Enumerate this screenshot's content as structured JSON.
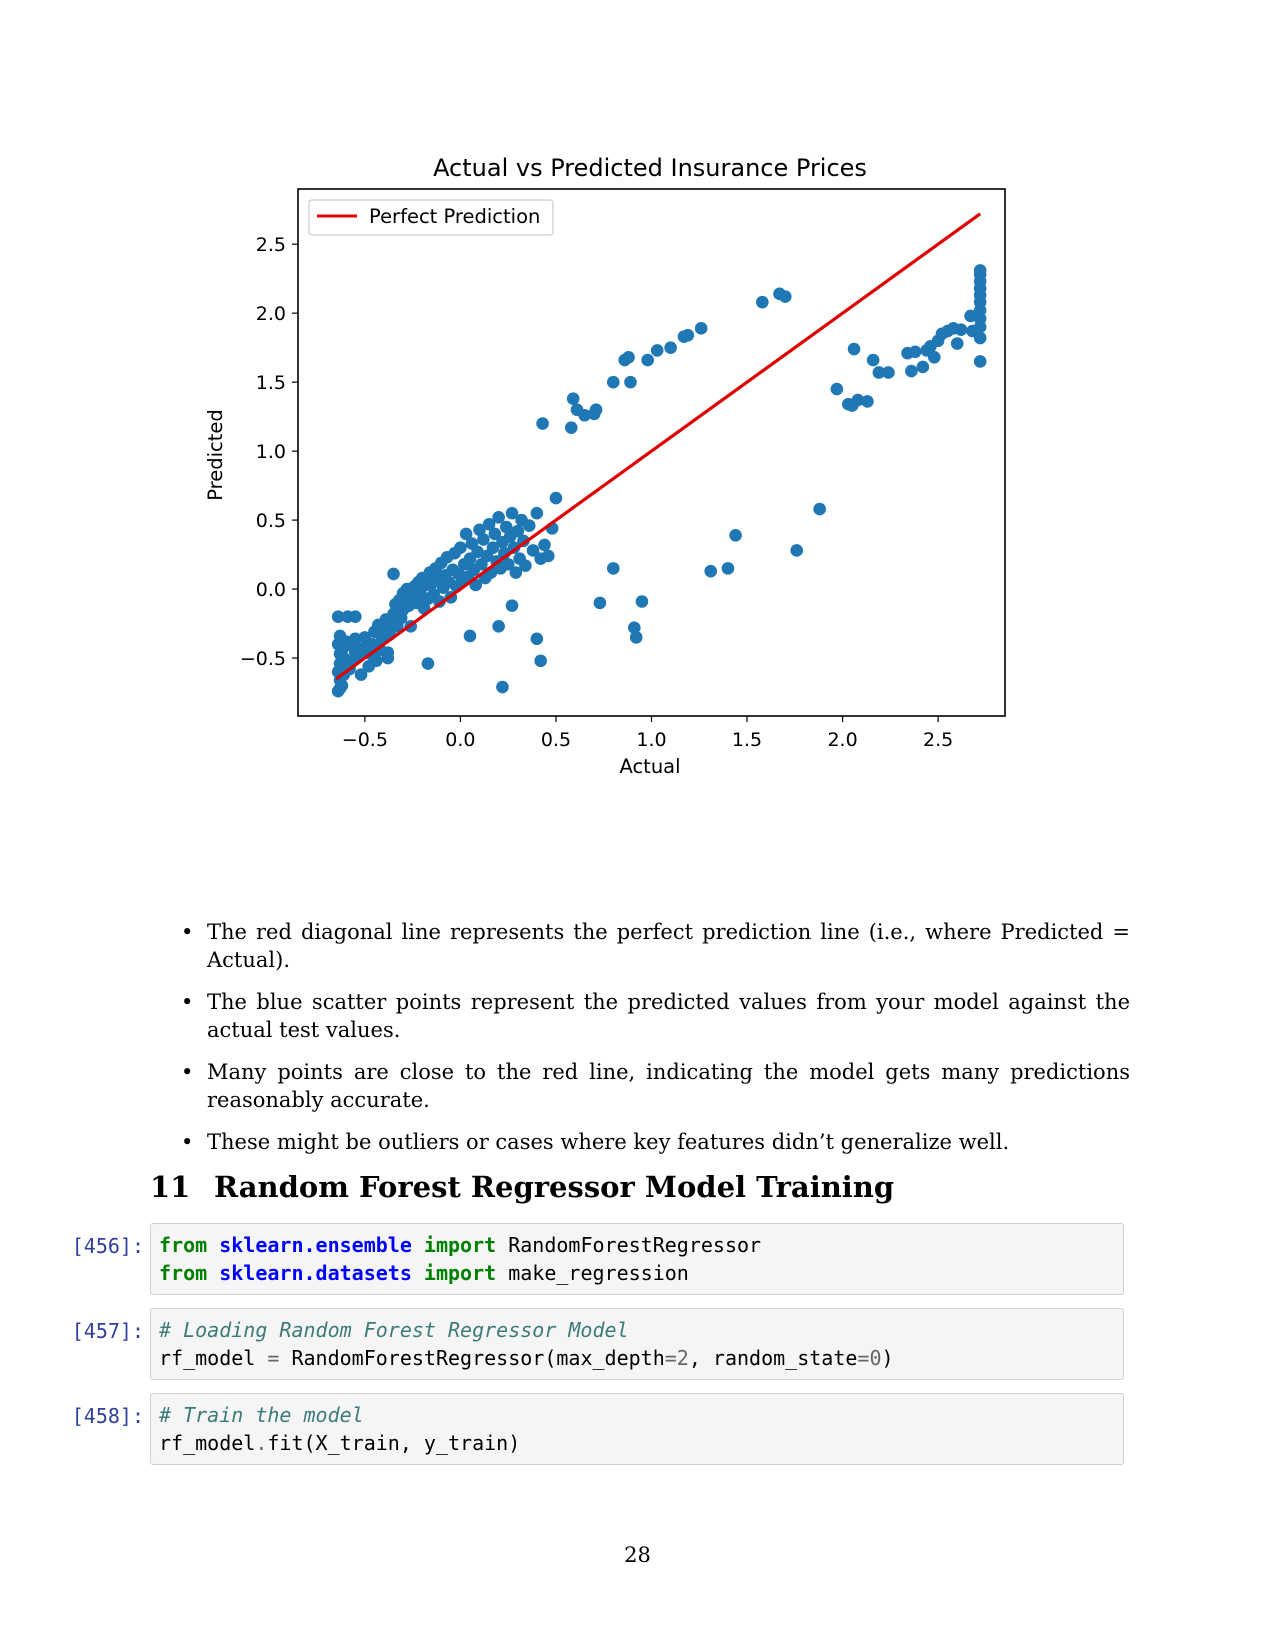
{
  "chart_data": {
    "type": "scatter",
    "title": "Actual vs Predicted Insurance Prices",
    "xlabel": "Actual",
    "ylabel": "Predicted",
    "xlim": [
      -0.85,
      2.85
    ],
    "ylim": [
      -0.92,
      2.9
    ],
    "xticks": [
      -0.5,
      0.0,
      0.5,
      1.0,
      1.5,
      2.0,
      2.5
    ],
    "xtick_labels": [
      "−0.5",
      "0.0",
      "0.5",
      "1.0",
      "1.5",
      "2.0",
      "2.5"
    ],
    "yticks": [
      -0.5,
      0.0,
      0.5,
      1.0,
      1.5,
      2.0,
      2.5
    ],
    "ytick_labels": [
      "−0.5",
      "0.0",
      "0.5",
      "1.0",
      "1.5",
      "2.0",
      "2.5"
    ],
    "legend": {
      "label": "Perfect Prediction",
      "placement": "upper-left"
    },
    "line": {
      "name": "Perfect Prediction",
      "color": "#e00000",
      "x": [
        -0.65,
        2.72
      ],
      "y": [
        -0.65,
        2.72
      ]
    },
    "scatter_color": "#1f77b4",
    "points": [
      [
        -0.64,
        -0.74
      ],
      [
        -0.63,
        -0.72
      ],
      [
        -0.62,
        -0.7
      ],
      [
        -0.63,
        -0.66
      ],
      [
        -0.61,
        -0.62
      ],
      [
        -0.64,
        -0.6
      ],
      [
        -0.62,
        -0.57
      ],
      [
        -0.63,
        -0.54
      ],
      [
        -0.61,
        -0.5
      ],
      [
        -0.63,
        -0.47
      ],
      [
        -0.62,
        -0.44
      ],
      [
        -0.64,
        -0.4
      ],
      [
        -0.6,
        -0.38
      ],
      [
        -0.63,
        -0.34
      ],
      [
        -0.64,
        -0.2
      ],
      [
        -0.58,
        -0.58
      ],
      [
        -0.56,
        -0.52
      ],
      [
        -0.55,
        -0.46
      ],
      [
        -0.57,
        -0.41
      ],
      [
        -0.55,
        -0.36
      ],
      [
        -0.53,
        -0.48
      ],
      [
        -0.52,
        -0.62
      ],
      [
        -0.51,
        -0.43
      ],
      [
        -0.5,
        -0.35
      ],
      [
        -0.48,
        -0.56
      ],
      [
        -0.47,
        -0.47
      ],
      [
        -0.46,
        -0.4
      ],
      [
        -0.45,
        -0.31
      ],
      [
        -0.44,
        -0.52
      ],
      [
        -0.43,
        -0.26
      ],
      [
        -0.42,
        -0.44
      ],
      [
        -0.41,
        -0.36
      ],
      [
        -0.4,
        -0.29
      ],
      [
        -0.39,
        -0.22
      ],
      [
        -0.38,
        -0.5
      ],
      [
        -0.37,
        -0.33
      ],
      [
        -0.36,
        -0.25
      ],
      [
        -0.35,
        -0.18
      ],
      [
        -0.34,
        -0.11
      ],
      [
        -0.33,
        -0.27
      ],
      [
        -0.32,
        -0.08
      ],
      [
        -0.31,
        -0.21
      ],
      [
        -0.3,
        -0.15
      ],
      [
        -0.29,
        -0.04
      ],
      [
        -0.28,
        0.0
      ],
      [
        -0.27,
        -0.12
      ],
      [
        -0.26,
        -0.27
      ],
      [
        -0.25,
        -0.05
      ],
      [
        -0.24,
        0.02
      ],
      [
        -0.23,
        -0.1
      ],
      [
        -0.22,
        0.05
      ],
      [
        -0.21,
        -0.03
      ],
      [
        -0.2,
        0.08
      ],
      [
        -0.19,
        -0.14
      ],
      [
        -0.18,
        0.03
      ],
      [
        -0.17,
        -0.07
      ],
      [
        -0.16,
        0.12
      ],
      [
        -0.15,
        0.04
      ],
      [
        -0.14,
        -0.04
      ],
      [
        -0.13,
        0.15
      ],
      [
        -0.12,
        0.08
      ],
      [
        -0.11,
        -0.09
      ],
      [
        -0.1,
        0.19
      ],
      [
        -0.09,
        0.01
      ],
      [
        -0.08,
        0.1
      ],
      [
        -0.07,
        0.23
      ],
      [
        -0.06,
        0.05
      ],
      [
        -0.05,
        -0.06
      ],
      [
        -0.04,
        0.14
      ],
      [
        -0.03,
        0.26
      ],
      [
        -0.02,
        0.02
      ],
      [
        -0.01,
        0.11
      ],
      [
        0.0,
        0.3
      ],
      [
        0.01,
        0.06
      ],
      [
        0.02,
        0.18
      ],
      [
        0.03,
        0.4
      ],
      [
        0.04,
        0.09
      ],
      [
        0.05,
        0.22
      ],
      [
        0.06,
        0.33
      ],
      [
        0.07,
        0.14
      ],
      [
        0.08,
        0.03
      ],
      [
        0.09,
        0.27
      ],
      [
        0.1,
        0.43
      ],
      [
        0.11,
        0.18
      ],
      [
        0.12,
        0.36
      ],
      [
        0.13,
        0.08
      ],
      [
        0.14,
        0.24
      ],
      [
        0.15,
        0.47
      ],
      [
        0.16,
        0.12
      ],
      [
        0.17,
        0.3
      ],
      [
        0.18,
        0.4
      ],
      [
        0.19,
        0.2
      ],
      [
        0.2,
        0.52
      ],
      [
        0.21,
        0.15
      ],
      [
        0.22,
        0.34
      ],
      [
        0.23,
        0.26
      ],
      [
        0.24,
        0.45
      ],
      [
        0.25,
        0.18
      ],
      [
        0.26,
        0.38
      ],
      [
        0.27,
        0.55
      ],
      [
        0.28,
        0.3
      ],
      [
        0.29,
        0.12
      ],
      [
        0.3,
        0.42
      ],
      [
        0.31,
        0.22
      ],
      [
        0.32,
        0.5
      ],
      [
        0.33,
        0.35
      ],
      [
        0.34,
        0.17
      ],
      [
        0.36,
        0.46
      ],
      [
        0.38,
        0.28
      ],
      [
        0.4,
        0.55
      ],
      [
        0.42,
        0.22
      ],
      [
        0.44,
        0.32
      ],
      [
        0.46,
        0.24
      ],
      [
        0.48,
        0.44
      ],
      [
        -0.35,
        0.11
      ],
      [
        -0.45,
        -0.48
      ],
      [
        -0.59,
        -0.2
      ],
      [
        -0.55,
        -0.2
      ],
      [
        -0.17,
        -0.54
      ],
      [
        -0.3,
        -0.03
      ],
      [
        -0.38,
        -0.46
      ],
      [
        0.05,
        -0.34
      ],
      [
        0.2,
        -0.27
      ],
      [
        0.22,
        -0.71
      ],
      [
        0.27,
        -0.12
      ],
      [
        0.4,
        -0.36
      ],
      [
        0.42,
        -0.52
      ],
      [
        0.43,
        1.2
      ],
      [
        0.5,
        0.66
      ],
      [
        0.58,
        1.17
      ],
      [
        0.59,
        1.38
      ],
      [
        0.61,
        1.3
      ],
      [
        0.65,
        1.26
      ],
      [
        0.7,
        1.27
      ],
      [
        0.71,
        1.3
      ],
      [
        0.73,
        -0.1
      ],
      [
        0.8,
        0.15
      ],
      [
        0.8,
        1.5
      ],
      [
        0.86,
        1.66
      ],
      [
        0.88,
        1.68
      ],
      [
        0.89,
        1.5
      ],
      [
        0.91,
        -0.28
      ],
      [
        0.92,
        -0.35
      ],
      [
        0.95,
        -0.09
      ],
      [
        0.98,
        1.66
      ],
      [
        1.03,
        1.73
      ],
      [
        1.1,
        1.75
      ],
      [
        1.17,
        1.83
      ],
      [
        1.19,
        1.84
      ],
      [
        1.26,
        1.89
      ],
      [
        1.31,
        0.13
      ],
      [
        1.4,
        0.15
      ],
      [
        1.44,
        0.39
      ],
      [
        1.58,
        2.08
      ],
      [
        1.67,
        2.14
      ],
      [
        1.7,
        2.12
      ],
      [
        1.76,
        0.28
      ],
      [
        1.88,
        0.58
      ],
      [
        1.97,
        1.45
      ],
      [
        2.03,
        1.34
      ],
      [
        2.05,
        1.33
      ],
      [
        2.06,
        1.74
      ],
      [
        2.08,
        1.37
      ],
      [
        2.13,
        1.36
      ],
      [
        2.16,
        1.66
      ],
      [
        2.19,
        1.57
      ],
      [
        2.24,
        1.57
      ],
      [
        2.34,
        1.71
      ],
      [
        2.36,
        1.58
      ],
      [
        2.38,
        1.72
      ],
      [
        2.42,
        1.61
      ],
      [
        2.44,
        1.73
      ],
      [
        2.46,
        1.76
      ],
      [
        2.48,
        1.68
      ],
      [
        2.5,
        1.8
      ],
      [
        2.52,
        1.85
      ],
      [
        2.55,
        1.87
      ],
      [
        2.58,
        1.89
      ],
      [
        2.6,
        1.78
      ],
      [
        2.62,
        1.88
      ],
      [
        2.67,
        1.98
      ],
      [
        2.68,
        1.87
      ],
      [
        2.72,
        1.65
      ],
      [
        2.72,
        1.82
      ],
      [
        2.72,
        1.9
      ],
      [
        2.72,
        1.96
      ],
      [
        2.72,
        2.02
      ],
      [
        2.72,
        2.08
      ],
      [
        2.72,
        2.13
      ],
      [
        2.72,
        2.18
      ],
      [
        2.72,
        2.23
      ],
      [
        2.72,
        2.28
      ],
      [
        2.72,
        2.31
      ]
    ]
  },
  "bullets": [
    "The red diagonal line represents the perfect prediction line (i.e., where Predicted = Actual).",
    "The blue scatter points represent the predicted values from your model against the actual test values.",
    "Many points are close to the red line, indicating the model gets many predictions reasonably accurate.",
    "These might be outliers or cases where key features didn’t generalize well."
  ],
  "bullet_symbol": "•",
  "section": {
    "number": "11",
    "title": "Random Forest Regressor Model Training"
  },
  "cells": [
    {
      "prompt": "[456]:",
      "line1": {
        "kw1": "from",
        "mod": "sklearn.ensemble",
        "kw2": "import",
        "name": "RandomForestRegressor"
      },
      "line2": {
        "kw1": "from",
        "mod": "sklearn.datasets",
        "kw2": "import",
        "name": "make_regression"
      }
    },
    {
      "prompt": "[457]:",
      "comment": "# Loading Random Forest Regressor Model",
      "code": {
        "a": "rf_model",
        "eq": "=",
        "b": "RandomForestRegressor(max_depth",
        "eq2": "=",
        "n1": "2",
        "c": ", random_state",
        "eq3": "=",
        "n2": "0",
        "d": ")"
      }
    },
    {
      "prompt": "[458]:",
      "comment": "# Train the model",
      "code": {
        "a": "rf_model",
        "dot": ".",
        "b": "fit(X_train, y_train)"
      }
    }
  ],
  "page_number": "28"
}
